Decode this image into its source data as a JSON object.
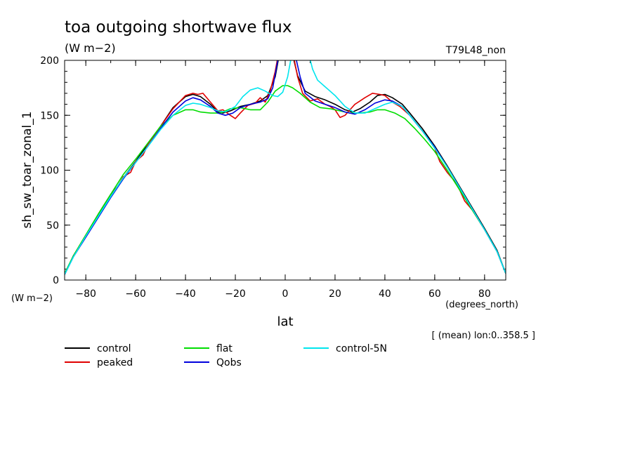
{
  "chart_data": {
    "type": "line",
    "title": "toa outgoing shortwave flux",
    "units": "(W m−2)",
    "run_label": "T79L48_non",
    "ylabel": "sh_sw_toar_zonal_1",
    "yunits": "(W m−2)",
    "xlabel": "lat",
    "xunits": "(degrees_north)",
    "averaging_note": "[ (mean) lon:0..358.5 ]",
    "xlim": [
      -88.5,
      88.5
    ],
    "ylim": [
      0,
      200
    ],
    "xticks": [
      -80,
      -60,
      -40,
      -20,
      0,
      20,
      40,
      60,
      80
    ],
    "yticks": [
      0,
      50,
      100,
      150,
      200
    ],
    "grid": false,
    "legend_position": "bottom-left",
    "series": [
      {
        "name": "control",
        "color": "#000000",
        "points": [
          [
            -88.5,
            5
          ],
          [
            -85,
            22
          ],
          [
            -80,
            40
          ],
          [
            -75,
            58
          ],
          [
            -70,
            76
          ],
          [
            -65,
            93
          ],
          [
            -60,
            108
          ],
          [
            -55,
            124
          ],
          [
            -50,
            140
          ],
          [
            -45,
            157
          ],
          [
            -40,
            167
          ],
          [
            -37,
            169
          ],
          [
            -34,
            167
          ],
          [
            -30,
            160
          ],
          [
            -27,
            153
          ],
          [
            -25,
            152
          ],
          [
            -22,
            154
          ],
          [
            -18,
            158
          ],
          [
            -14,
            160
          ],
          [
            -10,
            163
          ],
          [
            -7,
            168
          ],
          [
            -4,
            185
          ],
          [
            -2,
            210
          ],
          [
            0,
            232
          ],
          [
            1,
            228
          ],
          [
            3,
            205
          ],
          [
            5,
            186
          ],
          [
            8,
            172
          ],
          [
            12,
            167
          ],
          [
            16,
            164
          ],
          [
            20,
            160
          ],
          [
            24,
            155
          ],
          [
            27,
            153
          ],
          [
            30,
            156
          ],
          [
            34,
            162
          ],
          [
            37,
            168
          ],
          [
            40,
            169
          ],
          [
            43,
            166
          ],
          [
            47,
            160
          ],
          [
            50,
            152
          ],
          [
            55,
            138
          ],
          [
            60,
            122
          ],
          [
            65,
            104
          ],
          [
            70,
            85
          ],
          [
            75,
            66
          ],
          [
            80,
            47
          ],
          [
            85,
            27
          ],
          [
            88.5,
            6
          ]
        ]
      },
      {
        "name": "peaked",
        "color": "#e00000",
        "points": [
          [
            -88.5,
            5
          ],
          [
            -85,
            22
          ],
          [
            -80,
            41
          ],
          [
            -75,
            60
          ],
          [
            -70,
            78
          ],
          [
            -67,
            86
          ],
          [
            -65,
            94
          ],
          [
            -62,
            98
          ],
          [
            -60,
            108
          ],
          [
            -57,
            114
          ],
          [
            -55,
            124
          ],
          [
            -50,
            140
          ],
          [
            -45,
            156
          ],
          [
            -40,
            168
          ],
          [
            -37,
            170
          ],
          [
            -35,
            169
          ],
          [
            -33,
            170
          ],
          [
            -30,
            162
          ],
          [
            -27,
            154
          ],
          [
            -25,
            155
          ],
          [
            -22,
            150
          ],
          [
            -20,
            147
          ],
          [
            -18,
            152
          ],
          [
            -15,
            159
          ],
          [
            -12,
            161
          ],
          [
            -10,
            166
          ],
          [
            -8,
            162
          ],
          [
            -6,
            172
          ],
          [
            -4,
            190
          ],
          [
            -2,
            215
          ],
          [
            0,
            235
          ],
          [
            1,
            238
          ],
          [
            3,
            208
          ],
          [
            5,
            185
          ],
          [
            7,
            170
          ],
          [
            10,
            163
          ],
          [
            13,
            165
          ],
          [
            16,
            160
          ],
          [
            18,
            158
          ],
          [
            20,
            155
          ],
          [
            22,
            148
          ],
          [
            24,
            150
          ],
          [
            26,
            155
          ],
          [
            28,
            160
          ],
          [
            30,
            163
          ],
          [
            32,
            166
          ],
          [
            35,
            170
          ],
          [
            38,
            169
          ],
          [
            40,
            168
          ],
          [
            43,
            162
          ],
          [
            46,
            158
          ],
          [
            50,
            150
          ],
          [
            55,
            136
          ],
          [
            60,
            120
          ],
          [
            62,
            108
          ],
          [
            65,
            98
          ],
          [
            68,
            90
          ],
          [
            70,
            82
          ],
          [
            72,
            72
          ],
          [
            75,
            64
          ],
          [
            80,
            46
          ],
          [
            85,
            26
          ],
          [
            88.5,
            6
          ]
        ]
      },
      {
        "name": "flat",
        "color": "#00dd00",
        "points": [
          [
            -88.5,
            6
          ],
          [
            -85,
            22
          ],
          [
            -80,
            41
          ],
          [
            -75,
            60
          ],
          [
            -70,
            78
          ],
          [
            -65,
            96
          ],
          [
            -60,
            110
          ],
          [
            -55,
            125
          ],
          [
            -50,
            140
          ],
          [
            -45,
            150
          ],
          [
            -40,
            155
          ],
          [
            -37,
            155
          ],
          [
            -34,
            153
          ],
          [
            -30,
            152
          ],
          [
            -26,
            152
          ],
          [
            -22,
            156
          ],
          [
            -18,
            157
          ],
          [
            -14,
            155
          ],
          [
            -10,
            155
          ],
          [
            -7,
            162
          ],
          [
            -4,
            172
          ],
          [
            -1,
            177
          ],
          [
            1,
            177
          ],
          [
            3,
            175
          ],
          [
            6,
            170
          ],
          [
            10,
            162
          ],
          [
            14,
            157
          ],
          [
            18,
            156
          ],
          [
            22,
            154
          ],
          [
            26,
            152
          ],
          [
            30,
            152
          ],
          [
            34,
            153
          ],
          [
            37,
            155
          ],
          [
            40,
            155
          ],
          [
            44,
            152
          ],
          [
            48,
            147
          ],
          [
            52,
            138
          ],
          [
            56,
            128
          ],
          [
            60,
            117
          ],
          [
            65,
            100
          ],
          [
            70,
            82
          ],
          [
            75,
            64
          ],
          [
            80,
            46
          ],
          [
            85,
            26
          ],
          [
            88.5,
            6
          ]
        ]
      },
      {
        "name": "Qobs",
        "color": "#0000dd",
        "points": [
          [
            -88.5,
            5
          ],
          [
            -85,
            21
          ],
          [
            -80,
            39
          ],
          [
            -75,
            57
          ],
          [
            -70,
            75
          ],
          [
            -65,
            92
          ],
          [
            -60,
            107
          ],
          [
            -55,
            122
          ],
          [
            -50,
            138
          ],
          [
            -45,
            153
          ],
          [
            -40,
            163
          ],
          [
            -37,
            166
          ],
          [
            -34,
            164
          ],
          [
            -30,
            158
          ],
          [
            -27,
            152
          ],
          [
            -24,
            150
          ],
          [
            -21,
            152
          ],
          [
            -18,
            157
          ],
          [
            -14,
            160
          ],
          [
            -10,
            162
          ],
          [
            -7,
            165
          ],
          [
            -5,
            175
          ],
          [
            -3,
            200
          ],
          [
            -1,
            222
          ],
          [
            0,
            228
          ],
          [
            2,
            222
          ],
          [
            4,
            205
          ],
          [
            6,
            185
          ],
          [
            8,
            170
          ],
          [
            12,
            163
          ],
          [
            16,
            160
          ],
          [
            20,
            157
          ],
          [
            24,
            153
          ],
          [
            28,
            151
          ],
          [
            32,
            155
          ],
          [
            36,
            161
          ],
          [
            40,
            164
          ],
          [
            43,
            163
          ],
          [
            47,
            158
          ],
          [
            50,
            150
          ],
          [
            55,
            136
          ],
          [
            60,
            121
          ],
          [
            65,
            103
          ],
          [
            70,
            84
          ],
          [
            75,
            65
          ],
          [
            80,
            46
          ],
          [
            85,
            26
          ],
          [
            88.5,
            6
          ]
        ]
      },
      {
        "name": "control-5N",
        "color": "#00e5ee",
        "points": [
          [
            -88.5,
            5
          ],
          [
            -85,
            21
          ],
          [
            -80,
            40
          ],
          [
            -75,
            58
          ],
          [
            -70,
            76
          ],
          [
            -65,
            93
          ],
          [
            -60,
            107
          ],
          [
            -55,
            122
          ],
          [
            -50,
            137
          ],
          [
            -45,
            150
          ],
          [
            -40,
            159
          ],
          [
            -37,
            161
          ],
          [
            -34,
            160
          ],
          [
            -30,
            157
          ],
          [
            -27,
            154
          ],
          [
            -24,
            153
          ],
          [
            -20,
            158
          ],
          [
            -17,
            167
          ],
          [
            -14,
            173
          ],
          [
            -11,
            175
          ],
          [
            -8,
            172
          ],
          [
            -5,
            168
          ],
          [
            -3,
            167
          ],
          [
            -1,
            171
          ],
          [
            1,
            185
          ],
          [
            3,
            210
          ],
          [
            5,
            228
          ],
          [
            7,
            224
          ],
          [
            9,
            210
          ],
          [
            11,
            192
          ],
          [
            13,
            182
          ],
          [
            16,
            176
          ],
          [
            20,
            168
          ],
          [
            24,
            158
          ],
          [
            28,
            152
          ],
          [
            32,
            152
          ],
          [
            36,
            156
          ],
          [
            40,
            160
          ],
          [
            43,
            162
          ],
          [
            47,
            158
          ],
          [
            50,
            150
          ],
          [
            55,
            136
          ],
          [
            60,
            120
          ],
          [
            65,
            103
          ],
          [
            70,
            84
          ],
          [
            75,
            65
          ],
          [
            80,
            46
          ],
          [
            85,
            26
          ],
          [
            88.5,
            6
          ]
        ]
      }
    ]
  }
}
